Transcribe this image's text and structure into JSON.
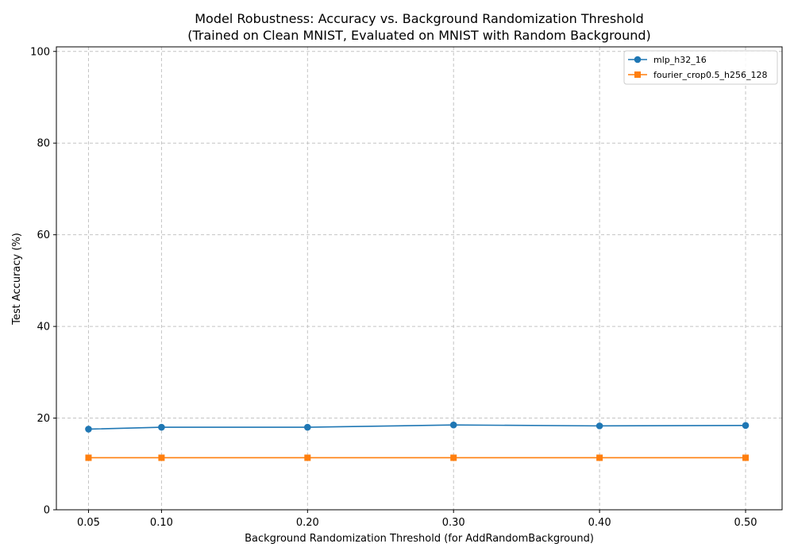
{
  "chart_data": {
    "type": "line",
    "title": "Model Robustness: Accuracy vs. Background Randomization Threshold",
    "subtitle": "(Trained on Clean MNIST, Evaluated on MNIST with Random Background)",
    "xlabel": "Background Randomization Threshold (for AddRandomBackground)",
    "ylabel": "Test Accuracy (%)",
    "xlim": [
      0.028,
      0.525
    ],
    "ylim": [
      0,
      101
    ],
    "x": [
      0.05,
      0.1,
      0.2,
      0.3,
      0.4,
      0.5
    ],
    "x_tick_labels": [
      "0.05",
      "0.10",
      "0.20",
      "0.30",
      "0.40",
      "0.50"
    ],
    "y_ticks": [
      0,
      20,
      40,
      60,
      80,
      100
    ],
    "y_tick_labels": [
      "0",
      "20",
      "40",
      "60",
      "80",
      "100"
    ],
    "grid": true,
    "legend_position": "top-right",
    "series": [
      {
        "name": "mlp_h32_16",
        "color": "#1f77b4",
        "marker": "circle",
        "values": [
          17.6,
          18.0,
          18.0,
          18.5,
          18.3,
          18.4
        ]
      },
      {
        "name": "fourier_crop0.5_h256_128",
        "color": "#ff7f0e",
        "marker": "square",
        "values": [
          11.35,
          11.35,
          11.35,
          11.35,
          11.35,
          11.35
        ]
      }
    ]
  }
}
